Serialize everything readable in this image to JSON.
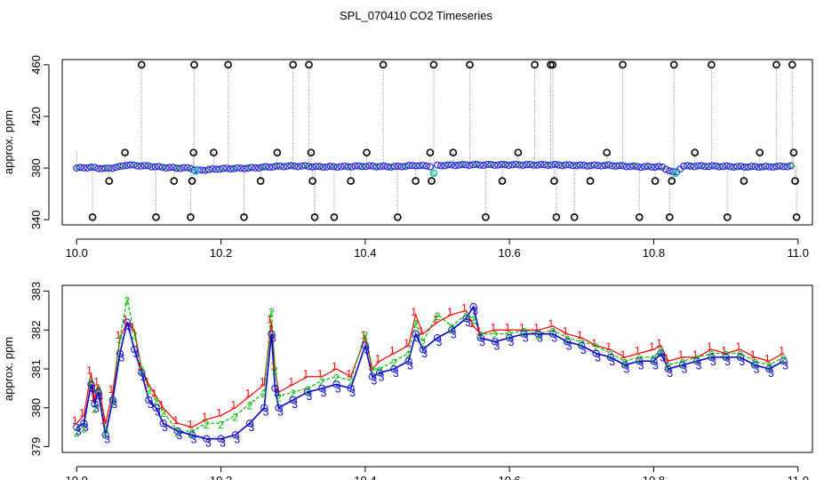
{
  "title": "SPL_070410  CO2 Timeseries",
  "chart_data": [
    {
      "type": "scatter",
      "panel": "top",
      "ylabel": "approx. ppm",
      "xlim": [
        9.98,
        11.02
      ],
      "ylim": [
        336,
        464
      ],
      "x_ticks": [
        10.0,
        10.2,
        10.4,
        10.6,
        10.8,
        11.0
      ],
      "x_tick_labels": [
        "10.0",
        "10.2",
        "10.4",
        "10.6",
        "10.8",
        "11.0"
      ],
      "y_ticks": [
        340,
        380,
        420,
        460
      ],
      "y_tick_labels": [
        "340",
        "380",
        "420",
        "460"
      ],
      "baseline": [
        [
          10.0,
          380.0
        ],
        [
          10.02,
          380.5
        ],
        [
          10.04,
          379.5
        ],
        [
          10.06,
          381.0
        ],
        [
          10.07,
          382.5
        ],
        [
          10.08,
          382.0
        ],
        [
          10.1,
          381.5
        ],
        [
          10.12,
          380.5
        ],
        [
          10.14,
          380.0
        ],
        [
          10.16,
          380.0
        ],
        [
          10.165,
          378.0
        ],
        [
          10.2,
          379.5
        ],
        [
          10.24,
          380.0
        ],
        [
          10.27,
          381.0
        ],
        [
          10.29,
          381.5
        ],
        [
          10.32,
          381.5
        ],
        [
          10.33,
          381.0
        ],
        [
          10.36,
          381.0
        ],
        [
          10.4,
          381.5
        ],
        [
          10.44,
          381.0
        ],
        [
          10.47,
          382.0
        ],
        [
          10.49,
          381.5
        ],
        [
          10.495,
          376.0
        ],
        [
          10.5,
          382.0
        ],
        [
          10.54,
          382.5
        ],
        [
          10.58,
          382.5
        ],
        [
          10.62,
          382.5
        ],
        [
          10.66,
          382.5
        ],
        [
          10.7,
          382.0
        ],
        [
          10.74,
          382.0
        ],
        [
          10.78,
          381.0
        ],
        [
          10.81,
          381.0
        ],
        [
          10.83,
          376.0
        ],
        [
          10.84,
          381.5
        ],
        [
          10.88,
          381.5
        ],
        [
          10.92,
          381.0
        ],
        [
          10.96,
          381.0
        ],
        [
          10.99,
          381.5
        ]
      ],
      "cyan_points": [
        [
          10.165,
          377.5
        ],
        [
          10.495,
          376.0
        ],
        [
          10.83,
          376.0
        ]
      ],
      "spikes": [
        [
          10.022,
          342
        ],
        [
          10.045,
          370
        ],
        [
          10.067,
          392
        ],
        [
          10.09,
          460
        ],
        [
          10.11,
          342
        ],
        [
          10.135,
          370
        ],
        [
          10.158,
          342
        ],
        [
          10.16,
          370
        ],
        [
          10.162,
          392
        ],
        [
          10.163,
          460
        ],
        [
          10.19,
          392
        ],
        [
          10.21,
          460
        ],
        [
          10.232,
          342
        ],
        [
          10.255,
          370
        ],
        [
          10.278,
          392
        ],
        [
          10.3,
          460
        ],
        [
          10.322,
          460
        ],
        [
          10.325,
          392
        ],
        [
          10.327,
          370
        ],
        [
          10.33,
          342
        ],
        [
          10.357,
          342
        ],
        [
          10.38,
          370
        ],
        [
          10.402,
          392
        ],
        [
          10.425,
          460
        ],
        [
          10.445,
          342
        ],
        [
          10.47,
          370
        ],
        [
          10.49,
          392
        ],
        [
          10.492,
          370
        ],
        [
          10.495,
          460
        ],
        [
          10.522,
          392
        ],
        [
          10.545,
          460
        ],
        [
          10.567,
          342
        ],
        [
          10.59,
          370
        ],
        [
          10.612,
          392
        ],
        [
          10.635,
          460
        ],
        [
          10.657,
          460
        ],
        [
          10.66,
          460
        ],
        [
          10.662,
          370
        ],
        [
          10.665,
          342
        ],
        [
          10.69,
          342
        ],
        [
          10.712,
          370
        ],
        [
          10.735,
          392
        ],
        [
          10.757,
          460
        ],
        [
          10.78,
          342
        ],
        [
          10.802,
          370
        ],
        [
          10.822,
          342
        ],
        [
          10.825,
          370
        ],
        [
          10.828,
          460
        ],
        [
          10.857,
          392
        ],
        [
          10.88,
          460
        ],
        [
          10.902,
          342
        ],
        [
          10.925,
          370
        ],
        [
          10.947,
          392
        ],
        [
          10.97,
          460
        ],
        [
          10.992,
          460
        ],
        [
          10.994,
          392
        ],
        [
          10.996,
          370
        ],
        [
          10.998,
          342
        ]
      ]
    },
    {
      "type": "line",
      "panel": "bottom",
      "ylabel": "approx. ppm",
      "xlim": [
        9.98,
        11.02
      ],
      "ylim": [
        378.85,
        383.15
      ],
      "x_ticks": [
        10.0,
        10.2,
        10.4,
        10.6,
        10.8,
        11.0
      ],
      "x_tick_labels": [
        "10.0",
        "10.2",
        "10.4",
        "10.6",
        "10.8",
        "11.0"
      ],
      "y_ticks": [
        379,
        380,
        381,
        382,
        383
      ],
      "y_tick_labels": [
        "379",
        "380",
        "381",
        "382",
        "383"
      ],
      "series_markers": [
        "1",
        "2",
        "3"
      ],
      "series_colors": [
        "#ff0000",
        "#00bb00",
        "#0000cc"
      ],
      "x": [
        10.0,
        10.01,
        10.02,
        10.025,
        10.03,
        10.04,
        10.05,
        10.06,
        10.07,
        10.08,
        10.09,
        10.1,
        10.11,
        10.12,
        10.14,
        10.16,
        10.18,
        10.2,
        10.22,
        10.24,
        10.26,
        10.27,
        10.275,
        10.28,
        10.3,
        10.32,
        10.34,
        10.36,
        10.38,
        10.4,
        10.41,
        10.42,
        10.44,
        10.46,
        10.47,
        10.48,
        10.5,
        10.52,
        10.54,
        10.55,
        10.56,
        10.58,
        10.6,
        10.62,
        10.64,
        10.66,
        10.68,
        10.7,
        10.72,
        10.74,
        10.76,
        10.78,
        10.8,
        10.81,
        10.82,
        10.84,
        10.86,
        10.88,
        10.9,
        10.92,
        10.94,
        10.96,
        10.98
      ],
      "series": [
        {
          "name": "1",
          "values": [
            379.6,
            379.8,
            380.9,
            380.2,
            380.6,
            379.6,
            380.4,
            381.8,
            382.2,
            382.0,
            381.0,
            380.6,
            380.3,
            380.0,
            379.6,
            379.5,
            379.7,
            379.8,
            380.0,
            380.3,
            380.6,
            382.2,
            381.0,
            380.4,
            380.6,
            380.8,
            380.8,
            381.0,
            380.8,
            381.8,
            381.0,
            381.2,
            381.4,
            381.6,
            382.4,
            381.9,
            382.2,
            382.4,
            382.5,
            382.1,
            381.9,
            382.0,
            382.0,
            382.0,
            382.0,
            382.1,
            381.9,
            381.8,
            381.6,
            381.5,
            381.3,
            381.4,
            381.5,
            381.6,
            381.2,
            381.3,
            381.3,
            381.5,
            381.4,
            381.5,
            381.3,
            381.2,
            381.4
          ]
        },
        {
          "name": "2",
          "values": [
            379.4,
            379.5,
            380.7,
            380.0,
            380.5,
            379.4,
            380.2,
            381.8,
            382.8,
            381.9,
            381.0,
            380.5,
            380.2,
            379.9,
            379.4,
            379.4,
            379.6,
            379.6,
            379.8,
            380.1,
            380.4,
            382.5,
            381.0,
            380.3,
            380.4,
            380.5,
            380.7,
            380.8,
            380.7,
            381.9,
            381.0,
            381.0,
            381.2,
            381.4,
            382.2,
            381.7,
            382.4,
            382.1,
            382.4,
            382.3,
            381.9,
            381.9,
            381.9,
            382.0,
            381.9,
            382.0,
            381.8,
            381.7,
            381.6,
            381.4,
            381.2,
            381.3,
            381.3,
            381.5,
            381.1,
            381.2,
            381.3,
            381.4,
            381.4,
            381.4,
            381.2,
            381.1,
            381.3
          ]
        },
        {
          "name": "3",
          "values": [
            379.5,
            379.6,
            380.6,
            380.1,
            380.4,
            379.3,
            380.2,
            381.4,
            382.2,
            381.5,
            380.9,
            380.2,
            380.0,
            379.6,
            379.4,
            379.3,
            379.2,
            379.2,
            379.3,
            379.6,
            380.0,
            381.9,
            380.5,
            380.0,
            380.2,
            380.4,
            380.5,
            380.6,
            380.5,
            381.6,
            380.8,
            380.9,
            381.0,
            381.2,
            381.9,
            381.5,
            381.8,
            382.0,
            382.3,
            382.6,
            381.8,
            381.7,
            381.8,
            381.9,
            381.9,
            381.9,
            381.7,
            381.6,
            381.4,
            381.3,
            381.1,
            381.2,
            381.2,
            381.4,
            381.0,
            381.1,
            381.2,
            381.3,
            381.3,
            381.3,
            381.1,
            381.0,
            381.2
          ]
        }
      ]
    }
  ]
}
